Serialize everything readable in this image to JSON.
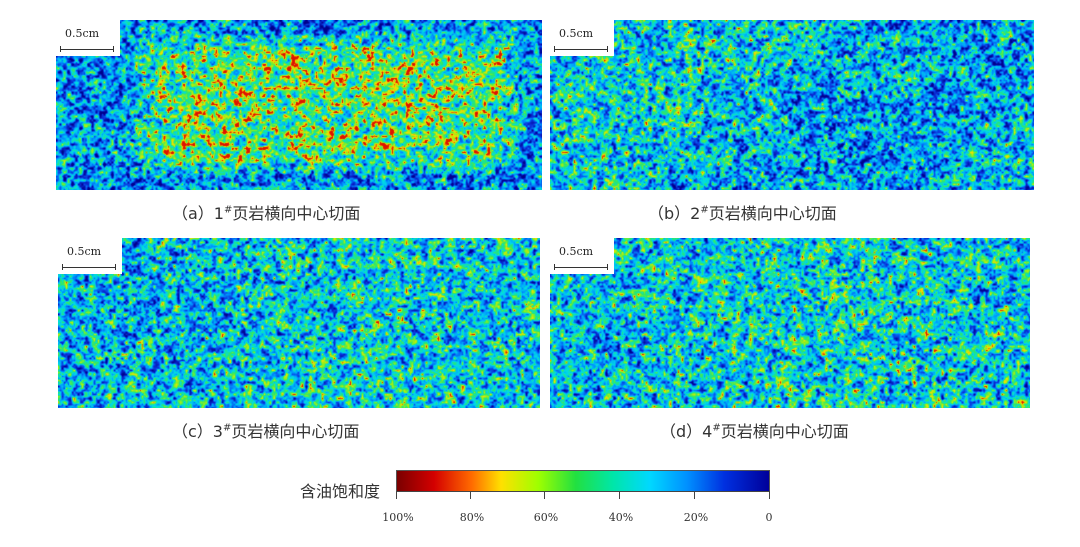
{
  "panels": [
    {
      "id": "a",
      "scale_label": "0.5cm",
      "caption_prefix": "（a）1",
      "caption_sup": "#",
      "caption_suffix": "页岩横向中心切面"
    },
    {
      "id": "b",
      "scale_label": "0.5cm",
      "caption_prefix": "（b）2",
      "caption_sup": "#",
      "caption_suffix": "页岩横向中心切面"
    },
    {
      "id": "c",
      "scale_label": "0.5cm",
      "caption_prefix": "（c）3",
      "caption_sup": "#",
      "caption_suffix": "页岩横向中心切面"
    },
    {
      "id": "d",
      "scale_label": "0.5cm",
      "caption_prefix": "（d）4",
      "caption_sup": "#",
      "caption_suffix": "页岩横向中心切面"
    }
  ],
  "legend": {
    "title": "含油饱和度",
    "ticks": [
      "100%",
      "80%",
      "60%",
      "40%",
      "20%",
      "0"
    ]
  },
  "colors": {
    "deep_blue": "#1030c0",
    "cyan": "#00d8ff",
    "green": "#30e060",
    "yellow": "#ffe000",
    "red": "#d40000"
  }
}
